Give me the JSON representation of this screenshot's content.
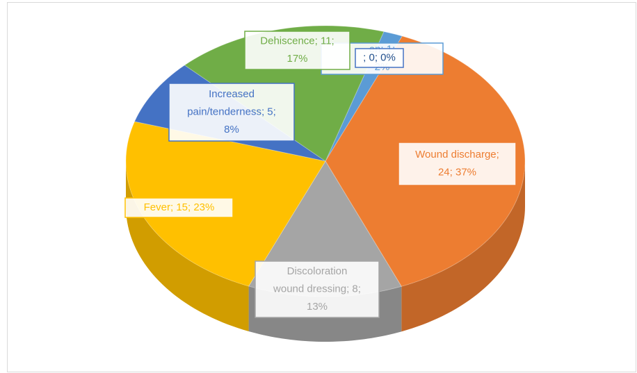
{
  "chart_data": {
    "type": "pie",
    "values": [
      0,
      1,
      24,
      8,
      15,
      5,
      11
    ],
    "value_labels": [
      [
        "; 0; 0%"
      ],
      [
        "en; 1;",
        "2%"
      ],
      [
        "Wound discharge;",
        "24; 37%"
      ],
      [
        "Discoloration",
        "wound dressing; 8;",
        "13%"
      ],
      [
        "Fever; 15; 23%"
      ],
      [
        "Increased",
        "pain/tenderness; 5;",
        "8%"
      ],
      [
        "Dehiscence; 11;",
        "17%"
      ]
    ],
    "colors": [
      "#2e5f9e",
      "#5b9bd5",
      "#ed7d31",
      "#a5a5a5",
      "#ffc000",
      "#4472c4",
      "#70ad47"
    ]
  }
}
